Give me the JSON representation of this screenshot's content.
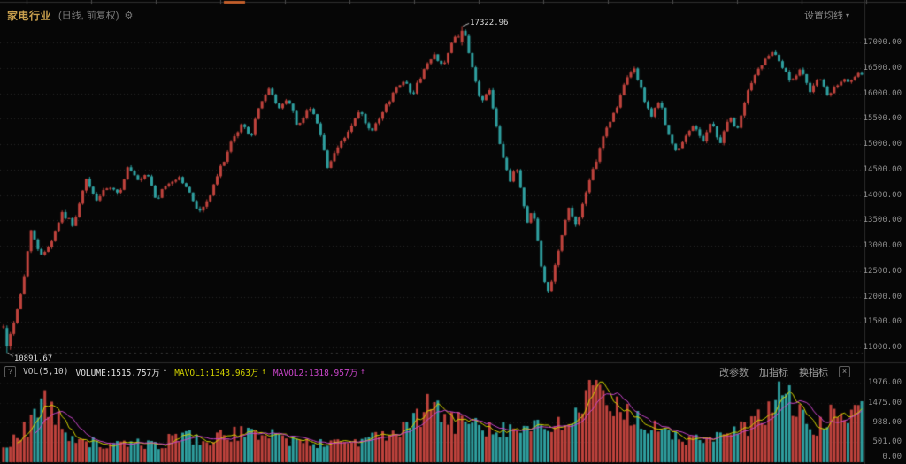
{
  "header": {
    "title": "家电行业",
    "subtitle": "(日线, 前复权)",
    "gear_icon": "⚙",
    "ma_settings_label": "设置均线",
    "dropdown_arrow": "▾"
  },
  "main_chart": {
    "high_annotation": "17322.96",
    "low_annotation": "10891.67"
  },
  "volume_panel": {
    "help_icon": "?",
    "indicator_label": "VOL(5,10)",
    "volume_label": "VOLUME:1515.757万",
    "mavol1_label": "MAVOL1:1343.963万",
    "mavol2_label": "MAVOL2:1318.957万",
    "up_arrow": "↑",
    "buttons": [
      "改参数",
      "加指标",
      "换指标"
    ],
    "close_icon": "×"
  },
  "colors": {
    "background": "#060606",
    "up_candle": "#c0433d",
    "down_candle": "#2fa0a0",
    "grid": "#262626",
    "divider": "#2c2c2c",
    "axis_text": "#8e8e8e",
    "mavol1_line": "#d2d200",
    "mavol2_line": "#cc46cc",
    "annotation": "#dcdcdc",
    "title_gold": "#c9a04e",
    "strip_orange": "#c25e2a"
  },
  "chart_data": {
    "type": "candlestick",
    "title": "家电行业 (日线, 前复权)",
    "panes": [
      "price",
      "volume"
    ],
    "candle_count": 250,
    "seed": 42,
    "peak": {
      "frac": 0.536,
      "value": 17322.96,
      "label": "17322.96"
    },
    "trough": {
      "frac": 0.004,
      "value": 10891.67,
      "label": "10891.67"
    },
    "volume_last": 1515.757,
    "mavol1_last": 1343.963,
    "mavol2_last": 1318.957,
    "price_axis": {
      "min": 10700,
      "max": 17600,
      "ticks": [
        {
          "value": 17000,
          "label": "17000.00"
        },
        {
          "value": 16500,
          "label": "16500.00"
        },
        {
          "value": 16000,
          "label": "16000.00"
        },
        {
          "value": 15500,
          "label": "15500.00"
        },
        {
          "value": 15000,
          "label": "15000.00"
        },
        {
          "value": 14500,
          "label": "14500.00"
        },
        {
          "value": 14000,
          "label": "14000.00"
        },
        {
          "value": 13500,
          "label": "13500.00"
        },
        {
          "value": 13000,
          "label": "13000.00"
        },
        {
          "value": 12500,
          "label": "12500.00"
        },
        {
          "value": 12000,
          "label": "12000.00"
        },
        {
          "value": 11500,
          "label": "11500.00"
        },
        {
          "value": 11000,
          "label": "11000.00"
        }
      ]
    },
    "volume_axis": {
      "min": 0,
      "max": 1976,
      "ticks": [
        {
          "value": 1976,
          "label": "1976.00"
        },
        {
          "value": 1475,
          "label": "1475.00"
        },
        {
          "value": 988,
          "label": "988.00"
        },
        {
          "value": 501,
          "label": "501.00"
        },
        {
          "value": 0,
          "label": "0.00"
        }
      ]
    },
    "price_anchors": [
      [
        0.0,
        11400
      ],
      [
        0.004,
        11000
      ],
      [
        0.012,
        11500
      ],
      [
        0.022,
        12150
      ],
      [
        0.032,
        13350
      ],
      [
        0.042,
        12800
      ],
      [
        0.055,
        13050
      ],
      [
        0.068,
        13650
      ],
      [
        0.082,
        13400
      ],
      [
        0.096,
        14300
      ],
      [
        0.108,
        13900
      ],
      [
        0.122,
        14150
      ],
      [
        0.134,
        14000
      ],
      [
        0.145,
        14550
      ],
      [
        0.157,
        14250
      ],
      [
        0.168,
        14400
      ],
      [
        0.178,
        13900
      ],
      [
        0.19,
        14200
      ],
      [
        0.205,
        14350
      ],
      [
        0.218,
        14000
      ],
      [
        0.228,
        13650
      ],
      [
        0.24,
        13950
      ],
      [
        0.252,
        14500
      ],
      [
        0.265,
        15000
      ],
      [
        0.278,
        15400
      ],
      [
        0.288,
        15150
      ],
      [
        0.3,
        15850
      ],
      [
        0.31,
        16080
      ],
      [
        0.32,
        15700
      ],
      [
        0.332,
        15900
      ],
      [
        0.343,
        15300
      ],
      [
        0.355,
        15750
      ],
      [
        0.367,
        15400
      ],
      [
        0.378,
        14500
      ],
      [
        0.39,
        14950
      ],
      [
        0.402,
        15250
      ],
      [
        0.415,
        15650
      ],
      [
        0.428,
        15200
      ],
      [
        0.44,
        15550
      ],
      [
        0.452,
        15950
      ],
      [
        0.465,
        16280
      ],
      [
        0.477,
        15980
      ],
      [
        0.49,
        16480
      ],
      [
        0.502,
        16750
      ],
      [
        0.513,
        16550
      ],
      [
        0.524,
        17050
      ],
      [
        0.536,
        17250
      ],
      [
        0.548,
        16350
      ],
      [
        0.557,
        15800
      ],
      [
        0.566,
        16100
      ],
      [
        0.578,
        15050
      ],
      [
        0.59,
        14250
      ],
      [
        0.598,
        14550
      ],
      [
        0.61,
        13450
      ],
      [
        0.617,
        13750
      ],
      [
        0.628,
        12400
      ],
      [
        0.635,
        12080
      ],
      [
        0.647,
        12950
      ],
      [
        0.658,
        13750
      ],
      [
        0.667,
        13400
      ],
      [
        0.678,
        13980
      ],
      [
        0.69,
        14650
      ],
      [
        0.702,
        15300
      ],
      [
        0.714,
        15700
      ],
      [
        0.725,
        16250
      ],
      [
        0.735,
        16500
      ],
      [
        0.745,
        15950
      ],
      [
        0.755,
        15550
      ],
      [
        0.765,
        15850
      ],
      [
        0.775,
        15150
      ],
      [
        0.785,
        14800
      ],
      [
        0.795,
        15150
      ],
      [
        0.805,
        15400
      ],
      [
        0.815,
        15050
      ],
      [
        0.825,
        15450
      ],
      [
        0.835,
        15000
      ],
      [
        0.845,
        15550
      ],
      [
        0.855,
        15250
      ],
      [
        0.865,
        15950
      ],
      [
        0.877,
        16400
      ],
      [
        0.888,
        16700
      ],
      [
        0.897,
        16880
      ],
      [
        0.908,
        16500
      ],
      [
        0.918,
        16200
      ],
      [
        0.93,
        16480
      ],
      [
        0.94,
        16050
      ],
      [
        0.95,
        16300
      ],
      [
        0.96,
        15950
      ],
      [
        0.975,
        16200
      ],
      [
        1.0,
        16380
      ]
    ],
    "volume_anchors": [
      [
        0.0,
        350
      ],
      [
        0.03,
        900
      ],
      [
        0.04,
        1500
      ],
      [
        0.05,
        1450
      ],
      [
        0.07,
        800
      ],
      [
        0.09,
        600
      ],
      [
        0.11,
        450
      ],
      [
        0.13,
        400
      ],
      [
        0.16,
        500
      ],
      [
        0.18,
        380
      ],
      [
        0.2,
        650
      ],
      [
        0.215,
        700
      ],
      [
        0.23,
        500
      ],
      [
        0.25,
        600
      ],
      [
        0.27,
        750
      ],
      [
        0.29,
        650
      ],
      [
        0.31,
        800
      ],
      [
        0.33,
        550
      ],
      [
        0.35,
        500
      ],
      [
        0.37,
        450
      ],
      [
        0.39,
        550
      ],
      [
        0.41,
        500
      ],
      [
        0.43,
        600
      ],
      [
        0.45,
        700
      ],
      [
        0.47,
        800
      ],
      [
        0.49,
        1250
      ],
      [
        0.5,
        1600
      ],
      [
        0.51,
        1100
      ],
      [
        0.525,
        950
      ],
      [
        0.54,
        1050
      ],
      [
        0.55,
        1200
      ],
      [
        0.56,
        900
      ],
      [
        0.58,
        850
      ],
      [
        0.6,
        800
      ],
      [
        0.62,
        900
      ],
      [
        0.63,
        750
      ],
      [
        0.65,
        900
      ],
      [
        0.66,
        1000
      ],
      [
        0.675,
        1500
      ],
      [
        0.685,
        1900
      ],
      [
        0.7,
        1400
      ],
      [
        0.71,
        1200
      ],
      [
        0.72,
        1500
      ],
      [
        0.73,
        1300
      ],
      [
        0.74,
        1100
      ],
      [
        0.75,
        900
      ],
      [
        0.77,
        700
      ],
      [
        0.79,
        600
      ],
      [
        0.81,
        550
      ],
      [
        0.83,
        600
      ],
      [
        0.85,
        700
      ],
      [
        0.87,
        900
      ],
      [
        0.88,
        1100
      ],
      [
        0.895,
        1300
      ],
      [
        0.905,
        1700
      ],
      [
        0.915,
        1920
      ],
      [
        0.925,
        1200
      ],
      [
        0.94,
        800
      ],
      [
        0.95,
        900
      ],
      [
        0.96,
        1000
      ],
      [
        0.975,
        1400
      ],
      [
        0.99,
        1000
      ],
      [
        1.0,
        1515.757
      ]
    ]
  }
}
